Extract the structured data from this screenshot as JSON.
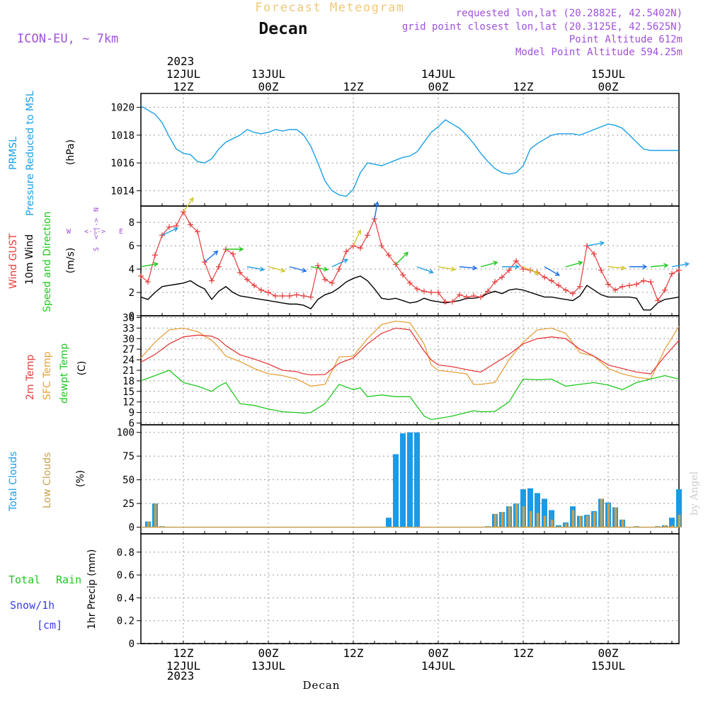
{
  "header": {
    "title": "Forecast Meteogram",
    "station": "Decan",
    "model": "ICON-EU, ~ 7km",
    "requested": "requested lon,lat (20.2882E, 42.5402N)",
    "grid": "grid point closest lon,lat (20.3125E, 42.5625N)",
    "point_alt": "Point Altitude 612m",
    "model_alt": "Model Point Altitude 594.25m"
  },
  "time_axis": {
    "top_year": "2023",
    "bottom_year": "2023",
    "bottom_station": "Decan",
    "ticks": [
      {
        "hour": 6,
        "hr": "12Z",
        "date": "12JUL"
      },
      {
        "hour": 18,
        "hr": "00Z",
        "date": "13JUL"
      },
      {
        "hour": 30,
        "hr": "12Z",
        "date": ""
      },
      {
        "hour": 42,
        "hr": "00Z",
        "date": "14JUL"
      },
      {
        "hour": 54,
        "hr": "12Z",
        "date": ""
      },
      {
        "hour": 66,
        "hr": "00Z",
        "date": "15JUL"
      }
    ]
  },
  "colors": {
    "pressure": "#1aa0e6",
    "gust": "#e63c3c",
    "wind": "#000000",
    "arrows": "#1ec81e",
    "t2m": "#e63c3c",
    "sfc": "#e6a03c",
    "dew": "#1ec81e",
    "total_cloud": "#1a9be6",
    "low_cloud": "#c8a050",
    "purple": "#a050dc",
    "rain": "#1ec81e",
    "snow": "#3c3ce6",
    "title": "#f0c878",
    "watermark": "#cccccc"
  },
  "labels": {
    "prmsl": "PRMSL",
    "pressure_msl": "Pressure Reduced to MSL",
    "hpa": "(hPa)",
    "wind_gust": "Wind GUST",
    "wind_10m": "10m Wind",
    "speed_dir": "Speed and Direction",
    "ms": "(m/s)",
    "compass_n": "N",
    "compass_s": "S",
    "compass_w": "W",
    "compass_e": "E",
    "compass_mid": "<-|->",
    "t2m": "2m Temp",
    "sfc": "SFC Temp",
    "dew": "dewpt Temp",
    "c": "(C)",
    "total_clouds": "Total Clouds",
    "low_clouds": "Low Clouds",
    "pct": "(%)",
    "total": "Total",
    "rain": "Rain",
    "snow": "Snow/1h",
    "cm": "[cm]",
    "precip": "1hr Precip (mm)",
    "watermark": "by Angel"
  },
  "chart_data": [
    {
      "type": "line",
      "title": "PRMSL Pressure Reduced to MSL",
      "ylabel": "(hPa)",
      "ylim": [
        1012.9,
        1021.0
      ],
      "yticks": [
        "1014",
        "1016",
        "1018",
        "1020"
      ],
      "x_hours": [
        0,
        2,
        3,
        4,
        5,
        6,
        7,
        8,
        9,
        10,
        11,
        12,
        14,
        15,
        16,
        17,
        18,
        19,
        20,
        21,
        22,
        23,
        24,
        25,
        26,
        27,
        28,
        29,
        30,
        31,
        32,
        33,
        34,
        35,
        36,
        37,
        38,
        39,
        40,
        41,
        42,
        43,
        44,
        45,
        46,
        47,
        48,
        49,
        50,
        51,
        52,
        53,
        54,
        55,
        56,
        57,
        58,
        59,
        60,
        61,
        62,
        63,
        64,
        65,
        66,
        67,
        68,
        69,
        70,
        71,
        72,
        73,
        74,
        75,
        76
      ],
      "series": [
        {
          "name": "PRMSL",
          "values": [
            1020.1,
            1019.5,
            1018.9,
            1017.9,
            1017.0,
            1016.7,
            1016.6,
            1016.1,
            1016.0,
            1016.3,
            1017.0,
            1017.5,
            1018.0,
            1018.4,
            1018.2,
            1018.1,
            1018.2,
            1018.4,
            1018.3,
            1018.4,
            1018.4,
            1018.0,
            1017.2,
            1016.0,
            1014.7,
            1014.0,
            1013.7,
            1013.6,
            1014.1,
            1015.3,
            1016.0,
            1015.9,
            1015.8,
            1016.0,
            1016.2,
            1016.4,
            1016.5,
            1016.8,
            1017.5,
            1018.2,
            1018.6,
            1019.1,
            1018.8,
            1018.5,
            1018.0,
            1017.4,
            1016.7,
            1016.1,
            1015.6,
            1015.3,
            1015.2,
            1015.3,
            1015.8,
            1017.0,
            1017.4,
            1017.7,
            1018.0,
            1018.1,
            1018.1,
            1018.1,
            1018.0,
            1018.2,
            1018.4,
            1018.6,
            1018.8,
            1018.7,
            1018.5,
            1018.0,
            1017.5,
            1017.0,
            1016.9,
            1016.9,
            1016.9,
            1016.9,
            1016.9
          ]
        }
      ]
    },
    {
      "type": "line",
      "title": "Wind GUST / 10m Wind Speed and Direction",
      "ylabel": "(m/s)",
      "ylim": [
        0,
        9.4
      ],
      "yticks": [
        "0",
        "2",
        "4",
        "6",
        "8"
      ],
      "x_hours": [
        0,
        1,
        2,
        3,
        4,
        5,
        6,
        7,
        8,
        9,
        10,
        11,
        12,
        13,
        14,
        15,
        16,
        17,
        18,
        19,
        20,
        21,
        22,
        23,
        24,
        25,
        26,
        27,
        28,
        29,
        30,
        31,
        32,
        33,
        34,
        35,
        36,
        37,
        38,
        39,
        40,
        41,
        42,
        43,
        44,
        45,
        46,
        47,
        48,
        49,
        50,
        51,
        52,
        53,
        54,
        55,
        56,
        57,
        58,
        59,
        60,
        61,
        62,
        63,
        64,
        65,
        66,
        67,
        68,
        69,
        70,
        71,
        72,
        73,
        74,
        75,
        76
      ],
      "series": [
        {
          "name": "Wind GUST",
          "values": [
            3.4,
            2.9,
            5.2,
            6.9,
            7.6,
            7.7,
            8.9,
            7.8,
            7.2,
            4.6,
            3.0,
            4.2,
            5.7,
            5.3,
            3.7,
            3.1,
            2.6,
            2.2,
            2.0,
            1.7,
            1.7,
            1.7,
            1.8,
            1.7,
            1.6,
            4.3,
            3.1,
            2.8,
            4.0,
            5.5,
            6.0,
            5.8,
            6.9,
            8.3,
            6.0,
            5.2,
            4.4,
            3.5,
            2.8,
            2.3,
            2.1,
            2.0,
            2.0,
            1.2,
            1.2,
            1.8,
            1.6,
            1.7,
            1.6,
            2.1,
            2.9,
            3.3,
            3.9,
            4.7,
            4.0,
            3.9,
            3.7,
            3.3,
            3.0,
            2.6,
            2.2,
            1.9,
            2.5,
            6.0,
            5.3,
            3.9,
            2.7,
            2.2,
            2.5,
            2.6,
            2.7,
            3.0,
            2.9,
            1.3,
            2.2,
            3.6,
            3.9
          ]
        },
        {
          "name": "10m Wind",
          "values": [
            1.6,
            1.4,
            2.0,
            2.5,
            2.6,
            2.7,
            2.8,
            3.0,
            2.6,
            2.3,
            1.4,
            2.1,
            2.5,
            2.0,
            1.7,
            1.6,
            1.5,
            1.4,
            1.3,
            1.2,
            1.1,
            1.0,
            1.0,
            0.9,
            0.6,
            1.4,
            1.8,
            2.0,
            2.4,
            2.9,
            3.2,
            3.4,
            3.0,
            2.3,
            1.5,
            1.4,
            1.5,
            1.3,
            1.1,
            1.2,
            1.5,
            1.3,
            1.2,
            1.1,
            1.2,
            1.3,
            1.5,
            1.5,
            1.6,
            1.9,
            2.1,
            1.9,
            2.2,
            2.3,
            2.2,
            2.0,
            1.8,
            1.6,
            1.6,
            1.5,
            1.4,
            1.3,
            1.7,
            2.6,
            2.2,
            1.8,
            1.6,
            1.6,
            1.6,
            1.6,
            1.5,
            0.5,
            0.5,
            1.1,
            1.4,
            1.5,
            1.6
          ]
        }
      ],
      "arrow_directions_deg": [
        {
          "hour": 0,
          "dir": 80
        },
        {
          "hour": 3,
          "dir": 65
        },
        {
          "hour": 6,
          "dir": 35
        },
        {
          "hour": 9,
          "dir": 50
        },
        {
          "hour": 12,
          "dir": 90
        },
        {
          "hour": 15,
          "dir": 100
        },
        {
          "hour": 18,
          "dir": 105
        },
        {
          "hour": 21,
          "dir": 105
        },
        {
          "hour": 24,
          "dir": 100
        },
        {
          "hour": 27,
          "dir": 65
        },
        {
          "hour": 30,
          "dir": 25
        },
        {
          "hour": 33,
          "dir": 10
        },
        {
          "hour": 36,
          "dir": 45
        },
        {
          "hour": 39,
          "dir": 110
        },
        {
          "hour": 42,
          "dir": 100
        },
        {
          "hour": 45,
          "dir": 95
        },
        {
          "hour": 48,
          "dir": 75
        },
        {
          "hour": 51,
          "dir": 90
        },
        {
          "hour": 54,
          "dir": 115
        },
        {
          "hour": 57,
          "dir": 120
        },
        {
          "hour": 60,
          "dir": 75
        },
        {
          "hour": 63,
          "dir": 80
        },
        {
          "hour": 66,
          "dir": 95
        },
        {
          "hour": 69,
          "dir": 90
        },
        {
          "hour": 72,
          "dir": 85
        },
        {
          "hour": 75,
          "dir": 80
        }
      ]
    },
    {
      "type": "line",
      "title": "2m Temp / SFC Temp / dewpt Temp",
      "ylabel": "(C)",
      "ylim": [
        5.5,
        36.5
      ],
      "yticks": [
        "6",
        "9",
        "12",
        "15",
        "18",
        "21",
        "24",
        "27",
        "30",
        "33",
        "36"
      ],
      "x_hours": [
        0,
        2,
        4,
        6,
        8,
        10,
        11,
        12,
        14,
        16,
        18,
        20,
        22,
        23,
        24,
        26,
        28,
        30,
        31,
        32,
        34,
        36,
        38,
        40,
        41,
        42,
        44,
        46,
        47,
        48,
        50,
        52,
        54,
        56,
        58,
        60,
        62,
        64,
        66,
        68,
        70,
        72,
        74,
        76
      ],
      "series": [
        {
          "name": "2m Temp",
          "values": [
            23.3,
            25.5,
            28.5,
            30.5,
            31.0,
            30.7,
            29.8,
            28.0,
            25.4,
            24.2,
            22.8,
            21.0,
            20.6,
            20.0,
            19.7,
            19.8,
            23.0,
            24.5,
            26.5,
            28.5,
            31.5,
            33.0,
            32.5,
            26.5,
            24.0,
            22.5,
            22.0,
            21.2,
            20.8,
            20.5,
            23.0,
            25.5,
            28.5,
            30.0,
            30.5,
            30.0,
            27.0,
            25.0,
            22.5,
            21.5,
            20.5,
            20.0,
            25.0,
            29.5
          ]
        },
        {
          "name": "SFC Temp",
          "values": [
            24.5,
            29.0,
            32.5,
            33.0,
            32.0,
            29.5,
            27.5,
            25.0,
            23.5,
            21.5,
            20.0,
            19.5,
            18.5,
            17.5,
            16.5,
            17.0,
            24.8,
            25.0,
            27.5,
            30.0,
            34.0,
            35.0,
            34.5,
            28.5,
            22.5,
            21.0,
            20.5,
            20.0,
            17.0,
            17.0,
            17.5,
            24.0,
            29.0,
            32.5,
            33.0,
            31.5,
            26.0,
            25.0,
            21.5,
            20.0,
            19.0,
            18.5,
            27.0,
            33.5
          ]
        },
        {
          "name": "dewpt Temp",
          "values": [
            18.0,
            19.5,
            21.0,
            17.5,
            16.5,
            15.0,
            16.5,
            17.5,
            11.5,
            11.0,
            10.0,
            9.2,
            9.0,
            8.8,
            9.0,
            11.5,
            17.0,
            15.5,
            16.0,
            13.5,
            14.0,
            13.5,
            13.5,
            8.0,
            7.0,
            7.3,
            8.0,
            9.0,
            9.5,
            9.2,
            9.3,
            12.0,
            18.5,
            18.3,
            18.5,
            16.5,
            17.0,
            17.5,
            16.8,
            15.5,
            17.5,
            18.5,
            19.5,
            18.5
          ]
        }
      ]
    },
    {
      "type": "bar",
      "title": "Total Clouds / Low Clouds",
      "ylabel": "(%)",
      "ylim": [
        -7,
        108
      ],
      "yticks": [
        "0",
        "25",
        "50",
        "75",
        "100"
      ],
      "x_hours": [
        1,
        2,
        3,
        4,
        35,
        36,
        37,
        38,
        39,
        40,
        41,
        49,
        50,
        51,
        52,
        53,
        54,
        55,
        56,
        57,
        58,
        59,
        60,
        61,
        62,
        63,
        64,
        65,
        66,
        67,
        68,
        69,
        70,
        71,
        72,
        73,
        74,
        75,
        76
      ],
      "series": [
        {
          "name": "Total Clouds",
          "values": [
            6,
            25,
            1,
            0,
            10,
            77,
            99,
            100,
            100,
            0,
            0,
            1,
            14,
            16,
            22,
            25,
            40,
            41,
            36,
            30,
            18,
            2,
            5,
            22,
            12,
            13,
            17,
            30,
            26,
            21,
            8,
            0,
            1,
            0,
            0,
            1,
            2,
            10,
            40
          ]
        },
        {
          "name": "Low Clouds",
          "values": [
            6,
            25,
            1,
            0,
            0,
            0,
            0,
            0,
            0,
            0,
            0,
            1,
            14,
            16,
            22,
            25,
            22,
            17,
            15,
            12,
            8,
            1,
            4,
            18,
            12,
            12,
            16,
            30,
            25,
            21,
            8,
            0,
            1,
            0,
            0,
            1,
            2,
            2,
            13
          ]
        }
      ]
    },
    {
      "type": "bar",
      "title": "1hr Precip (mm) Total Rain / Snow/1h [cm]",
      "ylabel": "1hr Precip (mm)",
      "ylim": [
        0,
        0.96
      ],
      "yticks": [
        "0",
        "0.2",
        "0.4",
        "0.6",
        "0.8"
      ],
      "x_hours": [],
      "series": [
        {
          "name": "Total Rain",
          "values": []
        },
        {
          "name": "Snow/1h",
          "values": []
        }
      ]
    }
  ]
}
